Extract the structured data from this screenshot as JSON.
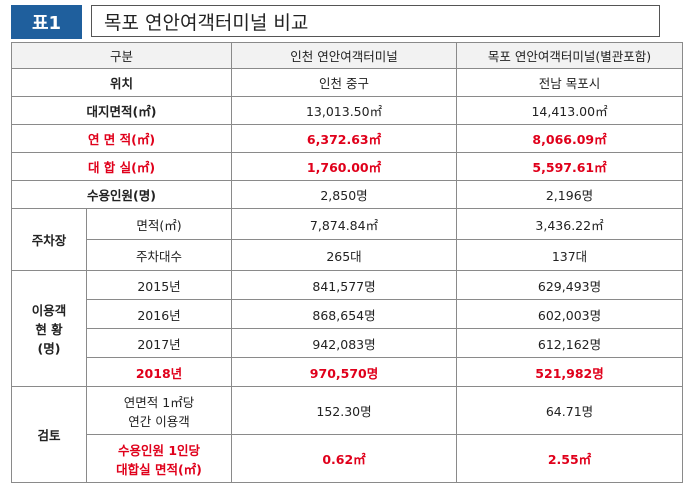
{
  "title": {
    "tag": "표1",
    "text": "목포 연안여객터미널 비교"
  },
  "header": {
    "category": "구분",
    "col_a": "인천 연안여객터미널",
    "col_b": "목포 연안여객터미널(별관포함)"
  },
  "rows": {
    "location": {
      "label": "위치",
      "a": "인천 중구",
      "b": "전남 목포시"
    },
    "site_area": {
      "label": "대지면적(㎡)",
      "a": "13,013.50㎡",
      "b": "14,413.00㎡"
    },
    "floor_area": {
      "label": "연 면 적(㎡)",
      "a": "6,372.63㎡",
      "b": "8,066.09㎡"
    },
    "waiting_room": {
      "label": "대 합 실(㎡)",
      "a": "1,760.00㎡",
      "b": "5,597.61㎡"
    },
    "capacity": {
      "label": "수용인원(명)",
      "a": "2,850명",
      "b": "2,196명"
    }
  },
  "parking": {
    "label": "주차장",
    "area": {
      "label": "면적(㎡)",
      "a": "7,874.84㎡",
      "b": "3,436.22㎡"
    },
    "count": {
      "label": "주차대수",
      "a": "265대",
      "b": "137대"
    }
  },
  "usage": {
    "label_1": "이용객",
    "label_2": "현 황",
    "label_3": "(명)",
    "years": [
      {
        "year": "2015년",
        "a": "841,577명",
        "b": "629,493명"
      },
      {
        "year": "2016년",
        "a": "868,654명",
        "b": "602,003명"
      },
      {
        "year": "2017년",
        "a": "942,083명",
        "b": "612,162명"
      },
      {
        "year": "2018년",
        "a": "970,570명",
        "b": "521,982명"
      }
    ]
  },
  "review": {
    "label": "검토",
    "per_area": {
      "label_1": "연면적 1㎡당",
      "label_2": "연간 이용객",
      "a": "152.30명",
      "b": "64.71명"
    },
    "per_person": {
      "label_1": "수용인원 1인당",
      "label_2": "대합실 면적(㎡)",
      "a": "0.62㎡",
      "b": "2.55㎡"
    }
  }
}
